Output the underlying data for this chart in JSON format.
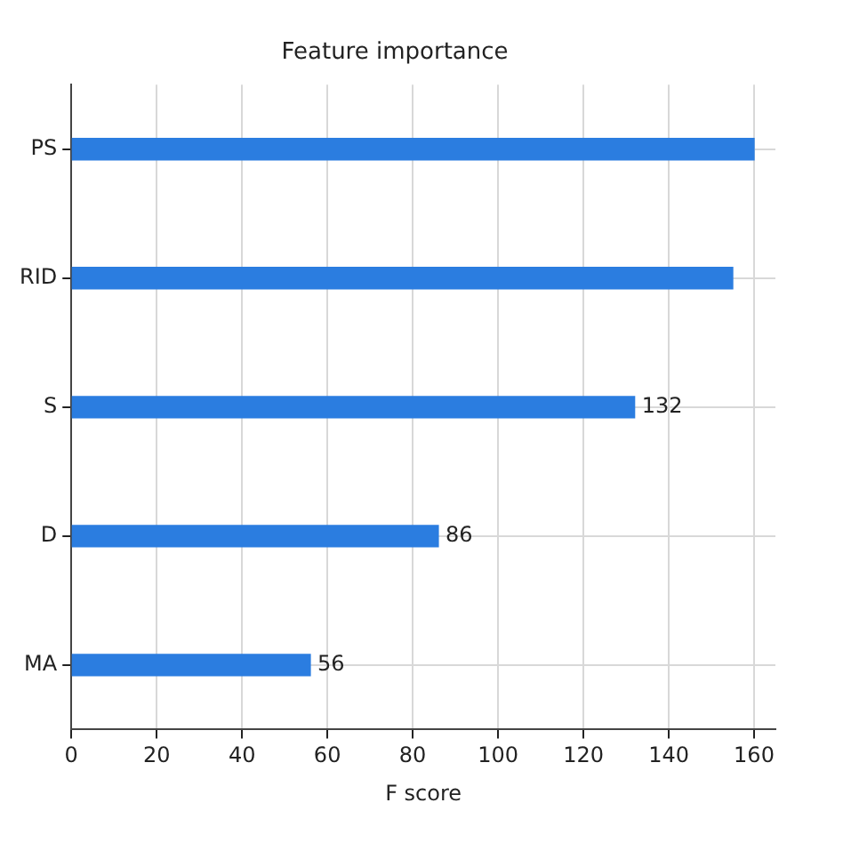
{
  "chart_data": {
    "type": "bar",
    "orientation": "horizontal",
    "title": "Feature importance",
    "xlabel": "F score",
    "categories": [
      "PS",
      "RID",
      "S",
      "D",
      "MA"
    ],
    "values": [
      160,
      155,
      132,
      86,
      56
    ],
    "value_labels": [
      null,
      null,
      "132",
      "86",
      "56"
    ],
    "color": "#2b7de0",
    "xlim": [
      0,
      165
    ],
    "xticks": [
      0,
      20,
      40,
      60,
      80,
      100,
      120,
      140,
      160
    ],
    "grid": true
  }
}
